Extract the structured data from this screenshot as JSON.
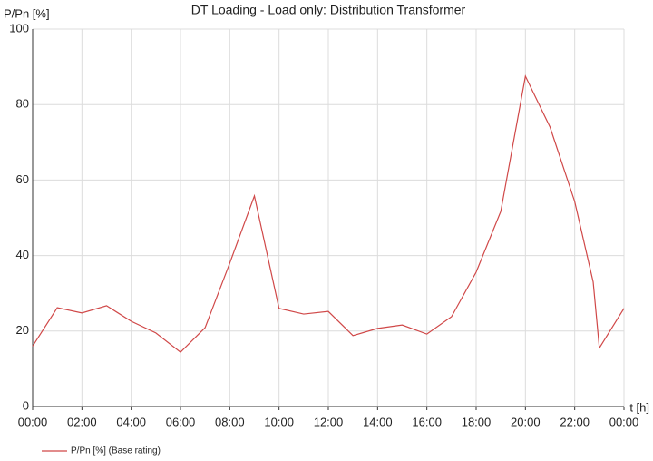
{
  "chart_data": {
    "type": "line",
    "title": "DT Loading - Load only: Distribution Transformer",
    "y_label": "P/Pn [%]",
    "x_label": "t [h]",
    "x": [
      0,
      1,
      2,
      3,
      4,
      5,
      6,
      7,
      8,
      9,
      10,
      11,
      12,
      13,
      14,
      15,
      16,
      17,
      18,
      19,
      20,
      21,
      22,
      22.75,
      23,
      24
    ],
    "series": [
      {
        "name": "P/Pn [%] (Base rating)",
        "color": "#d04848",
        "values": [
          16,
          26.2,
          24.8,
          26.7,
          22.6,
          19.5,
          14.4,
          20.9,
          38,
          55.8,
          26,
          24.5,
          25.2,
          18.8,
          20.7,
          21.6,
          19.2,
          23.8,
          35.6,
          51.7,
          87.5,
          74,
          54.3,
          33,
          15.5,
          26
        ]
      }
    ],
    "xlim": [
      0,
      24
    ],
    "xticks": [
      {
        "value": 0,
        "label": "00:00"
      },
      {
        "value": 2,
        "label": "02:00"
      },
      {
        "value": 4,
        "label": "04:00"
      },
      {
        "value": 6,
        "label": "06:00"
      },
      {
        "value": 8,
        "label": "08:00"
      },
      {
        "value": 10,
        "label": "10:00"
      },
      {
        "value": 12,
        "label": "12:00"
      },
      {
        "value": 14,
        "label": "14:00"
      },
      {
        "value": 16,
        "label": "16:00"
      },
      {
        "value": 18,
        "label": "18:00"
      },
      {
        "value": 20,
        "label": "20:00"
      },
      {
        "value": 22,
        "label": "22:00"
      },
      {
        "value": 24,
        "label": "00:00"
      }
    ],
    "ylim": [
      0,
      100
    ],
    "yticks": [
      0,
      20,
      40,
      60,
      80,
      100
    ],
    "grid": true,
    "legend": "bottom-left"
  }
}
